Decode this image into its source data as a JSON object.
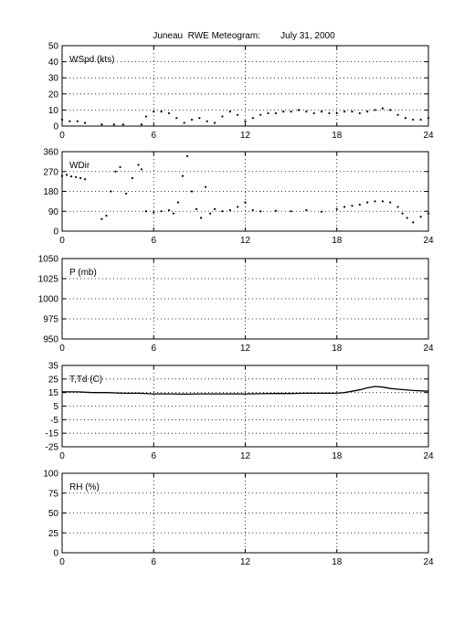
{
  "title": "Juneau  RWE Meteogram:        July 31, 2000",
  "chart_data": [
    {
      "type": "scatter",
      "label": "WSpd (kts)",
      "ylim": [
        0,
        50
      ],
      "yticks": [
        0,
        10,
        20,
        30,
        40,
        50
      ],
      "xlim": [
        0,
        24
      ],
      "xticks": [
        0,
        6,
        12,
        18,
        24
      ],
      "grid": true,
      "series": [
        {
          "x": [
            0,
            0.5,
            1,
            1.5,
            2.6,
            3.4,
            4.0,
            5.2,
            5.5,
            6,
            6.5,
            7,
            7.5,
            8,
            8.5,
            9,
            9.5,
            10,
            10.5,
            11,
            11.5,
            12,
            12.5,
            13,
            13.5,
            14,
            14.5,
            15,
            15.5,
            16,
            16.5,
            17,
            17.5,
            18,
            18.5,
            19,
            19.5,
            20,
            20.5,
            21,
            21.5,
            22,
            22.5,
            23,
            23.5,
            24
          ],
          "y": [
            4,
            3,
            3,
            2,
            1,
            1,
            1,
            1,
            6,
            9,
            9,
            8,
            5,
            2,
            4,
            5,
            3,
            2,
            6,
            9,
            7,
            3,
            5,
            7,
            8,
            8,
            9,
            9,
            10,
            9,
            8,
            9,
            8,
            8,
            9,
            9,
            8,
            9,
            10,
            11,
            10,
            7,
            5,
            4,
            4,
            5
          ]
        }
      ]
    },
    {
      "type": "scatter",
      "label": "WDir",
      "ylim": [
        0,
        360
      ],
      "yticks": [
        0,
        90,
        180,
        270,
        360
      ],
      "xlim": [
        0,
        24
      ],
      "xticks": [
        0,
        6,
        12,
        18,
        24
      ],
      "grid": true,
      "series": [
        {
          "x": [
            0,
            0.3,
            0.6,
            0.9,
            1.2,
            1.5,
            2.6,
            2.9,
            3.2,
            3.5,
            3.8,
            4.2,
            4.6,
            5.0,
            5.2,
            5.5,
            6,
            6.5,
            7,
            7.3,
            7.6,
            7.9,
            8.2,
            8.5,
            8.8,
            9.1,
            9.4,
            9.7,
            10,
            10.5,
            11,
            11.5,
            12,
            12.5,
            13,
            14,
            15,
            16,
            17,
            18,
            18.5,
            19,
            19.5,
            20,
            20.5,
            21,
            21.5,
            22,
            22.3,
            22.6,
            23,
            23.5,
            24
          ],
          "y": [
            250,
            255,
            248,
            245,
            240,
            235,
            55,
            70,
            180,
            270,
            290,
            170,
            240,
            300,
            280,
            90,
            85,
            90,
            95,
            80,
            130,
            250,
            340,
            180,
            100,
            60,
            200,
            80,
            100,
            90,
            95,
            110,
            130,
            95,
            90,
            92,
            90,
            95,
            88,
            100,
            110,
            115,
            120,
            130,
            135,
            135,
            130,
            110,
            80,
            60,
            40,
            65,
            80
          ]
        }
      ]
    },
    {
      "type": "line",
      "label": "P (mb)",
      "ylim": [
        950,
        1050
      ],
      "yticks": [
        950,
        975,
        1000,
        1025,
        1050
      ],
      "xlim": [
        0,
        24
      ],
      "xticks": [
        0,
        6,
        12,
        18,
        24
      ],
      "grid": true,
      "series": []
    },
    {
      "type": "line",
      "label": "T,Td (C)",
      "ylim": [
        -25,
        35
      ],
      "yticks": [
        -25,
        -15,
        -5,
        5,
        15,
        25,
        35
      ],
      "xlim": [
        0,
        24
      ],
      "xticks": [
        0,
        6,
        12,
        18,
        24
      ],
      "grid": true,
      "series": [
        {
          "x": [
            0,
            1,
            2,
            3,
            4,
            5,
            6,
            7,
            8,
            9,
            10,
            11,
            12,
            13,
            14,
            15,
            16,
            17,
            18,
            18.5,
            19,
            19.5,
            20,
            20.5,
            21,
            21.5,
            22,
            23,
            24
          ],
          "y": [
            15.5,
            15.5,
            15,
            15,
            14.5,
            14.5,
            14,
            14,
            13.8,
            14,
            14,
            14,
            14,
            14.2,
            14.3,
            14.3,
            14.5,
            14.5,
            14.5,
            15,
            16,
            17,
            18.5,
            19.5,
            19,
            18,
            17.5,
            16.5,
            16
          ]
        }
      ]
    },
    {
      "type": "line",
      "label": "RH (%)",
      "ylim": [
        0,
        100
      ],
      "yticks": [
        0,
        25,
        50,
        75,
        100
      ],
      "xlim": [
        0,
        24
      ],
      "xticks": [
        0,
        6,
        12,
        18,
        24
      ],
      "grid": true,
      "series": []
    }
  ]
}
